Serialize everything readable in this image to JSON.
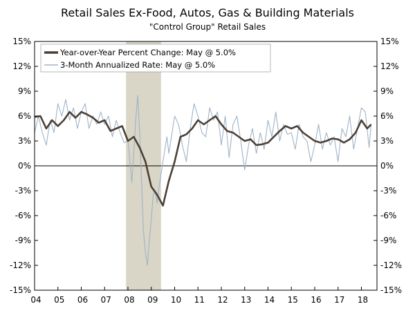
{
  "chart_data": {
    "type": "line",
    "title": "Retail Sales Ex-Food, Autos, Gas & Building Materials",
    "subtitle": "\"Control Group\" Retail Sales",
    "xlabel": "",
    "ylabel": "",
    "xlim": [
      2004,
      2018.667
    ],
    "ylim": [
      -15,
      15
    ],
    "x_ticks": [
      "04",
      "05",
      "06",
      "07",
      "08",
      "09",
      "10",
      "11",
      "12",
      "13",
      "14",
      "15",
      "16",
      "17",
      "18"
    ],
    "y_ticks": [
      "15%",
      "12%",
      "9%",
      "6%",
      "3%",
      "0%",
      "-3%",
      "-6%",
      "-9%",
      "-12%",
      "-15%"
    ],
    "grid": false,
    "legend_position": "top-left",
    "recession_band": [
      2007.917,
      2009.417
    ],
    "colors": {
      "yoy": "#4a3f36",
      "three_month": "#9fb3c6",
      "recession": "#d9d5c7",
      "axis": "#000000"
    },
    "series": [
      {
        "name": "Year-over-Year Percent Change: May @ 5.0%",
        "x": [
          2004.0,
          2004.25,
          2004.5,
          2004.75,
          2005.0,
          2005.25,
          2005.5,
          2005.75,
          2006.0,
          2006.25,
          2006.5,
          2006.75,
          2007.0,
          2007.25,
          2007.5,
          2007.75,
          2008.0,
          2008.25,
          2008.5,
          2008.75,
          2009.0,
          2009.25,
          2009.5,
          2009.75,
          2010.0,
          2010.25,
          2010.5,
          2010.75,
          2011.0,
          2011.25,
          2011.5,
          2011.75,
          2012.0,
          2012.25,
          2012.5,
          2012.75,
          2013.0,
          2013.25,
          2013.5,
          2013.75,
          2014.0,
          2014.25,
          2014.5,
          2014.75,
          2015.0,
          2015.25,
          2015.5,
          2015.75,
          2016.0,
          2016.25,
          2016.5,
          2016.75,
          2017.0,
          2017.25,
          2017.5,
          2017.75,
          2018.0,
          2018.25,
          2018.417
        ],
        "values": [
          5.9,
          6.0,
          4.5,
          5.5,
          4.8,
          5.5,
          6.5,
          5.8,
          6.5,
          6.2,
          5.8,
          5.2,
          5.5,
          4.2,
          4.5,
          4.8,
          3.0,
          3.5,
          2.2,
          0.5,
          -2.5,
          -3.5,
          -4.8,
          -1.8,
          0.5,
          3.5,
          3.8,
          4.5,
          5.5,
          5.0,
          5.5,
          6.0,
          5.0,
          4.2,
          4.0,
          3.5,
          3.0,
          3.2,
          2.5,
          2.6,
          2.8,
          3.5,
          4.2,
          4.8,
          4.5,
          4.8,
          4.0,
          3.5,
          3.0,
          2.8,
          3.0,
          3.3,
          3.2,
          2.8,
          3.2,
          4.0,
          5.5,
          4.5,
          5.0
        ]
      },
      {
        "name": "3-Month Annualized Rate: May @ 5.0%",
        "x": [
          2004.0,
          2004.167,
          2004.333,
          2004.5,
          2004.667,
          2004.833,
          2005.0,
          2005.167,
          2005.333,
          2005.5,
          2005.667,
          2005.833,
          2006.0,
          2006.167,
          2006.333,
          2006.5,
          2006.667,
          2006.833,
          2007.0,
          2007.167,
          2007.333,
          2007.5,
          2007.667,
          2007.833,
          2008.0,
          2008.083,
          2008.167,
          2008.25,
          2008.333,
          2008.417,
          2008.5,
          2008.583,
          2008.667,
          2008.75,
          2008.833,
          2008.917,
          2009.0,
          2009.083,
          2009.167,
          2009.25,
          2009.333,
          2009.417,
          2009.5,
          2009.583,
          2009.667,
          2009.75,
          2009.833,
          2009.917,
          2010.0,
          2010.167,
          2010.333,
          2010.5,
          2010.667,
          2010.833,
          2011.0,
          2011.167,
          2011.333,
          2011.5,
          2011.667,
          2011.833,
          2012.0,
          2012.167,
          2012.333,
          2012.5,
          2012.667,
          2012.833,
          2013.0,
          2013.167,
          2013.333,
          2013.5,
          2013.667,
          2013.833,
          2014.0,
          2014.167,
          2014.333,
          2014.5,
          2014.667,
          2014.833,
          2015.0,
          2015.167,
          2015.333,
          2015.5,
          2015.667,
          2015.833,
          2016.0,
          2016.167,
          2016.333,
          2016.5,
          2016.667,
          2016.833,
          2017.0,
          2017.167,
          2017.333,
          2017.5,
          2017.667,
          2017.833,
          2018.0,
          2018.167,
          2018.333,
          2018.417
        ],
        "values": [
          4.0,
          6.0,
          4.0,
          2.5,
          5.5,
          4.0,
          7.5,
          6.0,
          8.0,
          5.5,
          7.0,
          4.5,
          6.5,
          7.5,
          4.5,
          6.0,
          5.0,
          6.5,
          5.0,
          6.0,
          3.5,
          5.5,
          4.0,
          2.8,
          3.0,
          0.5,
          -2.0,
          1.5,
          5.5,
          8.5,
          4.0,
          -2.0,
          -8.0,
          -10.5,
          -12.0,
          -9.0,
          -6.5,
          -3.5,
          -3.0,
          -4.5,
          -2.5,
          -1.0,
          0.5,
          2.0,
          3.5,
          1.5,
          3.0,
          4.5,
          6.0,
          5.0,
          2.5,
          0.5,
          4.5,
          7.5,
          6.0,
          4.0,
          3.5,
          7.0,
          5.5,
          6.5,
          2.5,
          6.0,
          1.0,
          5.0,
          6.0,
          3.0,
          -0.5,
          2.5,
          4.5,
          1.5,
          4.0,
          2.0,
          5.5,
          3.5,
          6.5,
          3.0,
          5.0,
          3.8,
          4.0,
          2.0,
          5.0,
          3.5,
          3.0,
          0.5,
          2.5,
          5.0,
          2.0,
          4.0,
          2.5,
          3.5,
          0.5,
          4.5,
          3.5,
          6.0,
          2.0,
          4.5,
          7.0,
          6.5,
          2.2,
          5.0
        ]
      }
    ]
  }
}
